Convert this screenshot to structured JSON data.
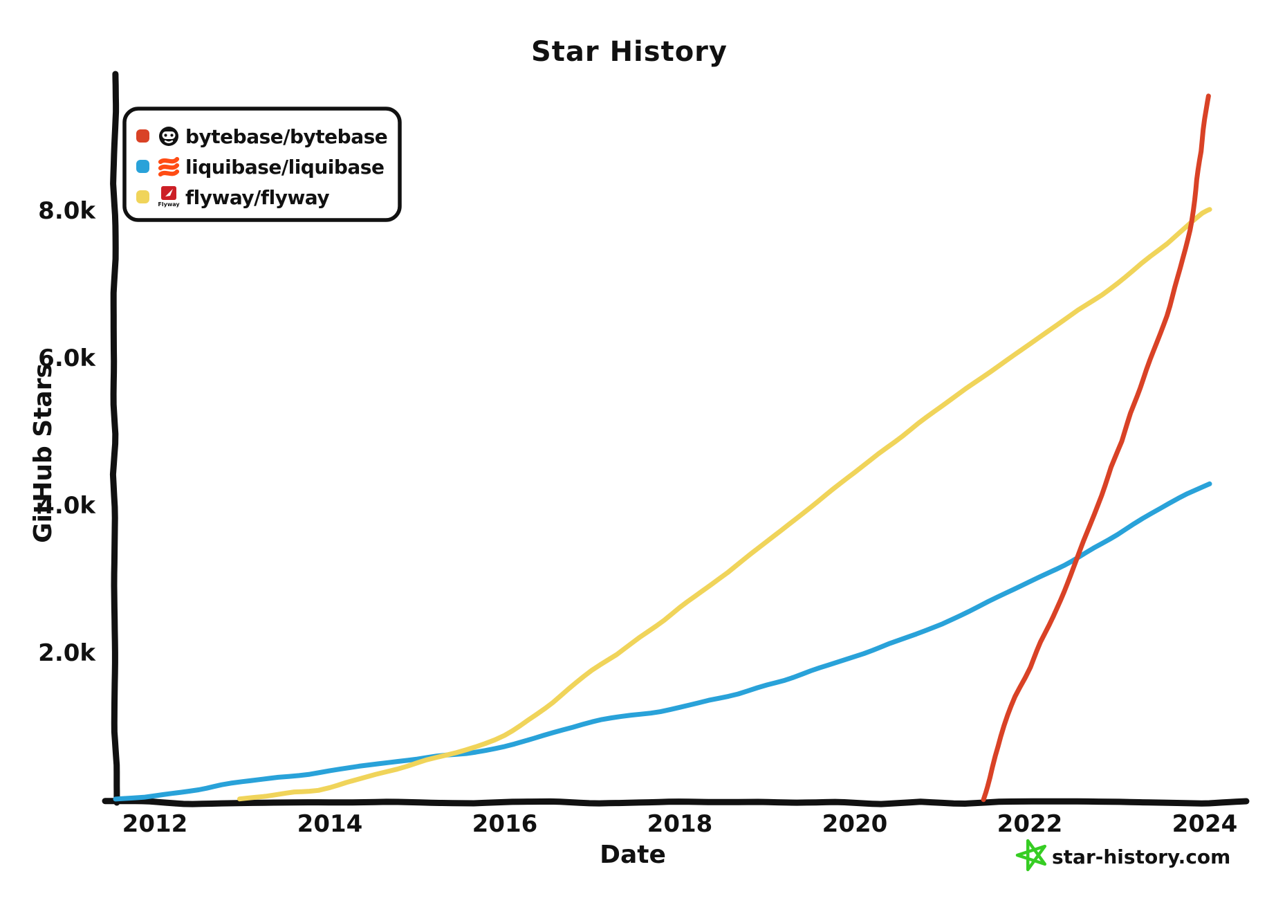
{
  "title": "Star History",
  "axes": {
    "x": {
      "label": "Date"
    },
    "y": {
      "label": "GitHub Stars"
    }
  },
  "legend": {
    "items": [
      {
        "label": "bytebase/bytebase",
        "swatch_color": "#d94226",
        "icon": "bytebase-avatar"
      },
      {
        "label": "liquibase/liquibase",
        "swatch_color": "#29a2d9",
        "icon": "liquibase-logo"
      },
      {
        "label": "flyway/flyway",
        "swatch_color": "#f0d45a",
        "icon": "flyway-logo"
      }
    ]
  },
  "watermark": {
    "text": "star-history.com",
    "star_color": "#36cd23",
    "text_color": "#6b6b6b"
  },
  "chart_data": {
    "type": "line",
    "title": "Star History",
    "xlabel": "Date",
    "ylabel": "GitHub Stars",
    "xlim": [
      2011.45,
      2024.45
    ],
    "ylim": [
      0,
      9800
    ],
    "grid": false,
    "legend_position": "top-left",
    "x_ticks": [
      {
        "value": 2012,
        "label": "2012"
      },
      {
        "value": 2014,
        "label": "2014"
      },
      {
        "value": 2016,
        "label": "2016"
      },
      {
        "value": 2018,
        "label": "2018"
      },
      {
        "value": 2020,
        "label": "2020"
      },
      {
        "value": 2022,
        "label": "2022"
      },
      {
        "value": 2024,
        "label": "2024"
      }
    ],
    "y_ticks": [
      {
        "value": 2000,
        "label": "2.0k"
      },
      {
        "value": 4000,
        "label": "4.0k"
      },
      {
        "value": 6000,
        "label": "6.0k"
      },
      {
        "value": 8000,
        "label": "8.0k"
      }
    ],
    "series": [
      {
        "name": "liquibase/liquibase",
        "color": "#29a2d9",
        "points": [
          [
            2011.55,
            0
          ],
          [
            2012,
            60
          ],
          [
            2012.5,
            140
          ],
          [
            2013,
            250
          ],
          [
            2014,
            390
          ],
          [
            2015,
            560
          ],
          [
            2016,
            720
          ],
          [
            2017,
            1050
          ],
          [
            2018,
            1250
          ],
          [
            2019,
            1550
          ],
          [
            2020,
            1950
          ],
          [
            2021,
            2400
          ],
          [
            2022,
            2950
          ],
          [
            2022.55,
            3280
          ],
          [
            2023,
            3600
          ],
          [
            2023.5,
            3950
          ],
          [
            2024.05,
            4300
          ]
        ]
      },
      {
        "name": "flyway/flyway",
        "color": "#f0d45a",
        "points": [
          [
            2012.97,
            0
          ],
          [
            2013.5,
            80
          ],
          [
            2014,
            170
          ],
          [
            2015,
            500
          ],
          [
            2016,
            870
          ],
          [
            2017,
            1750
          ],
          [
            2018,
            2600
          ],
          [
            2019,
            3500
          ],
          [
            2020,
            4450
          ],
          [
            2021,
            5350
          ],
          [
            2022,
            6200
          ],
          [
            2023,
            7000
          ],
          [
            2023.85,
            7850
          ],
          [
            2024.06,
            8000
          ]
        ]
      },
      {
        "name": "bytebase/bytebase",
        "color": "#d94226",
        "points": [
          [
            2021.48,
            0
          ],
          [
            2021.52,
            180
          ],
          [
            2021.6,
            600
          ],
          [
            2021.75,
            1150
          ],
          [
            2022,
            1800
          ],
          [
            2022.3,
            2600
          ],
          [
            2022.55,
            3300
          ],
          [
            2022.9,
            4400
          ],
          [
            2023.3,
            5700
          ],
          [
            2023.6,
            6700
          ],
          [
            2023.85,
            7850
          ],
          [
            2023.95,
            8800
          ],
          [
            2024.05,
            9550
          ]
        ]
      }
    ]
  }
}
